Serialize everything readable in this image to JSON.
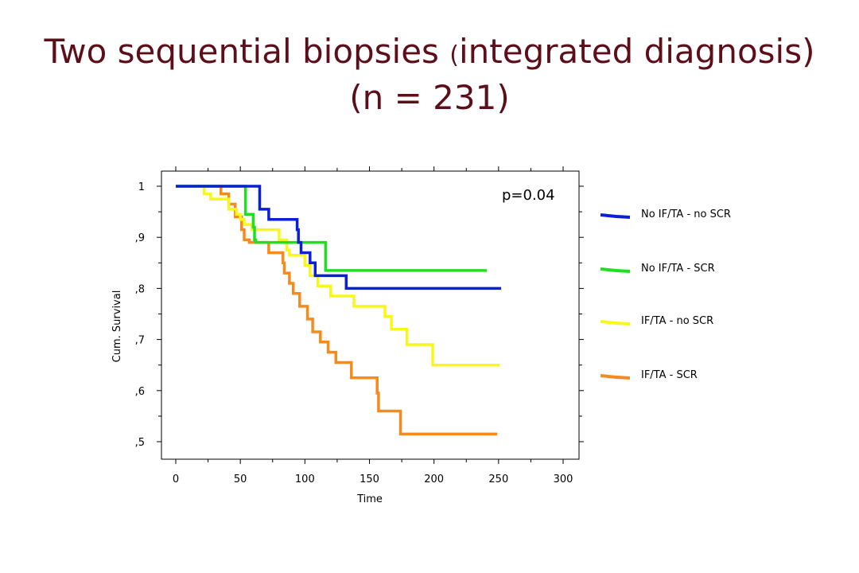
{
  "title": {
    "line1_a": "Two sequential biopsies ",
    "line1_paren": "(",
    "line1_b": "integrated diagnosis)",
    "line2": "(n = 231)"
  },
  "chart_data": {
    "type": "line",
    "subtype": "kaplan-meier step",
    "xlabel": "Time",
    "ylabel": "Cum. Survival",
    "xlim": [
      0,
      300
    ],
    "ylim": [
      0.47,
      1.03
    ],
    "x_ticks": [
      0,
      50,
      100,
      150,
      200,
      250,
      300
    ],
    "x_tick_labels": [
      "0",
      "50",
      "100",
      "150",
      "200",
      "250",
      "300"
    ],
    "y_ticks": [
      0.5,
      0.6,
      0.7,
      0.8,
      0.9,
      1.0
    ],
    "y_tick_labels": [
      ",5",
      ",6",
      ",7",
      ",8",
      ",9",
      "1"
    ],
    "annotation": "p=0.04",
    "legend_position": "right",
    "grid": false,
    "series": [
      {
        "name": "No IF/TA - no SCR",
        "color": "#0a1fd6",
        "points": [
          [
            0,
            1.0
          ],
          [
            65,
            1.0
          ],
          [
            65,
            0.955
          ],
          [
            72,
            0.955
          ],
          [
            72,
            0.935
          ],
          [
            94,
            0.935
          ],
          [
            94,
            0.915
          ],
          [
            95,
            0.915
          ],
          [
            95,
            0.89
          ],
          [
            97,
            0.89
          ],
          [
            97,
            0.87
          ],
          [
            104,
            0.87
          ],
          [
            104,
            0.85
          ],
          [
            108,
            0.85
          ],
          [
            108,
            0.825
          ],
          [
            132,
            0.825
          ],
          [
            132,
            0.8
          ],
          [
            252,
            0.8
          ]
        ]
      },
      {
        "name": "No IF/TA - SCR",
        "color": "#1ee01e",
        "points": [
          [
            0,
            1.0
          ],
          [
            54,
            1.0
          ],
          [
            54,
            0.945
          ],
          [
            60,
            0.945
          ],
          [
            60,
            0.92
          ],
          [
            61,
            0.92
          ],
          [
            61,
            0.895
          ],
          [
            62,
            0.895
          ],
          [
            62,
            0.89
          ],
          [
            116,
            0.89
          ],
          [
            116,
            0.835
          ],
          [
            241,
            0.835
          ]
        ]
      },
      {
        "name": "IF/TA - no SCR",
        "color": "#f7f71e",
        "points": [
          [
            0,
            1.0
          ],
          [
            22,
            1.0
          ],
          [
            22,
            0.985
          ],
          [
            27,
            0.985
          ],
          [
            27,
            0.975
          ],
          [
            41,
            0.975
          ],
          [
            41,
            0.955
          ],
          [
            47,
            0.955
          ],
          [
            47,
            0.945
          ],
          [
            50,
            0.945
          ],
          [
            50,
            0.935
          ],
          [
            53,
            0.935
          ],
          [
            53,
            0.925
          ],
          [
            59,
            0.925
          ],
          [
            59,
            0.915
          ],
          [
            80,
            0.915
          ],
          [
            80,
            0.895
          ],
          [
            86,
            0.895
          ],
          [
            86,
            0.875
          ],
          [
            88,
            0.875
          ],
          [
            88,
            0.865
          ],
          [
            100,
            0.865
          ],
          [
            100,
            0.845
          ],
          [
            104,
            0.845
          ],
          [
            104,
            0.825
          ],
          [
            110,
            0.825
          ],
          [
            110,
            0.805
          ],
          [
            120,
            0.805
          ],
          [
            120,
            0.785
          ],
          [
            138,
            0.785
          ],
          [
            138,
            0.765
          ],
          [
            162,
            0.765
          ],
          [
            162,
            0.745
          ],
          [
            167,
            0.745
          ],
          [
            167,
            0.72
          ],
          [
            179,
            0.72
          ],
          [
            179,
            0.69
          ],
          [
            199,
            0.69
          ],
          [
            199,
            0.65
          ],
          [
            251,
            0.65
          ]
        ]
      },
      {
        "name": "IF/TA - SCR",
        "color": "#f58a1e",
        "points": [
          [
            0,
            1.0
          ],
          [
            35,
            1.0
          ],
          [
            35,
            0.985
          ],
          [
            41,
            0.985
          ],
          [
            41,
            0.965
          ],
          [
            46,
            0.965
          ],
          [
            46,
            0.94
          ],
          [
            51,
            0.94
          ],
          [
            51,
            0.915
          ],
          [
            53,
            0.915
          ],
          [
            53,
            0.895
          ],
          [
            57,
            0.895
          ],
          [
            57,
            0.89
          ],
          [
            72,
            0.89
          ],
          [
            72,
            0.87
          ],
          [
            83,
            0.87
          ],
          [
            83,
            0.85
          ],
          [
            84,
            0.85
          ],
          [
            84,
            0.83
          ],
          [
            88,
            0.83
          ],
          [
            88,
            0.81
          ],
          [
            91,
            0.81
          ],
          [
            91,
            0.79
          ],
          [
            96,
            0.79
          ],
          [
            96,
            0.765
          ],
          [
            102,
            0.765
          ],
          [
            102,
            0.74
          ],
          [
            106,
            0.74
          ],
          [
            106,
            0.715
          ],
          [
            112,
            0.715
          ],
          [
            112,
            0.695
          ],
          [
            118,
            0.695
          ],
          [
            118,
            0.675
          ],
          [
            124,
            0.675
          ],
          [
            124,
            0.655
          ],
          [
            136,
            0.655
          ],
          [
            136,
            0.625
          ],
          [
            156,
            0.625
          ],
          [
            156,
            0.595
          ],
          [
            157,
            0.595
          ],
          [
            157,
            0.56
          ],
          [
            174,
            0.56
          ],
          [
            174,
            0.515
          ],
          [
            249,
            0.515
          ]
        ]
      }
    ]
  }
}
